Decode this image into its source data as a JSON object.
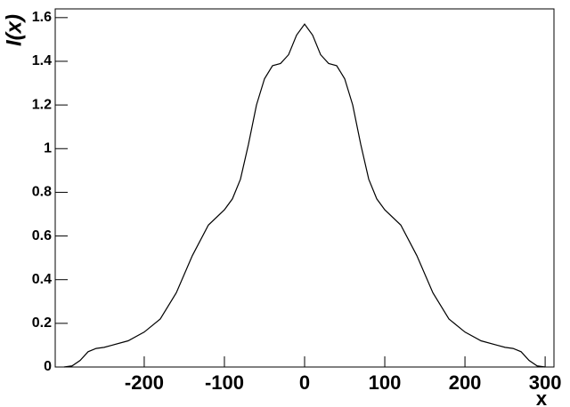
{
  "chart_data": {
    "type": "line",
    "x_label": "x",
    "y_label": "I(x)",
    "x": [
      -300,
      -290,
      -280,
      -270,
      -260,
      -250,
      -240,
      -220,
      -200,
      -180,
      -160,
      -140,
      -120,
      -100,
      -90,
      -80,
      -70,
      -60,
      -50,
      -40,
      -30,
      -20,
      -10,
      0,
      10,
      20,
      30,
      40,
      50,
      60,
      70,
      80,
      90,
      100,
      120,
      140,
      160,
      180,
      200,
      220,
      240,
      250,
      260,
      270,
      280,
      290,
      300
    ],
    "series": [
      {
        "color": "#000000",
        "values": [
          0,
          0.005,
          0.03,
          0.07,
          0.085,
          0.09,
          0.1,
          0.12,
          0.16,
          0.22,
          0.34,
          0.51,
          0.65,
          0.72,
          0.77,
          0.86,
          1.02,
          1.2,
          1.32,
          1.38,
          1.39,
          1.43,
          1.52,
          1.57,
          1.52,
          1.43,
          1.39,
          1.38,
          1.32,
          1.2,
          1.02,
          0.86,
          0.77,
          0.72,
          0.65,
          0.51,
          0.34,
          0.22,
          0.16,
          0.12,
          0.1,
          0.09,
          0.085,
          0.07,
          0.03,
          0.005,
          0
        ]
      }
    ],
    "xlim": [
      -311,
      311
    ],
    "ylim": [
      0,
      1.64
    ],
    "xticks": [
      -200,
      -100,
      0,
      100,
      200,
      300
    ],
    "yticks": [
      0,
      0.2,
      0.4,
      0.6,
      0.8,
      1,
      1.2,
      1.4,
      1.6
    ]
  }
}
